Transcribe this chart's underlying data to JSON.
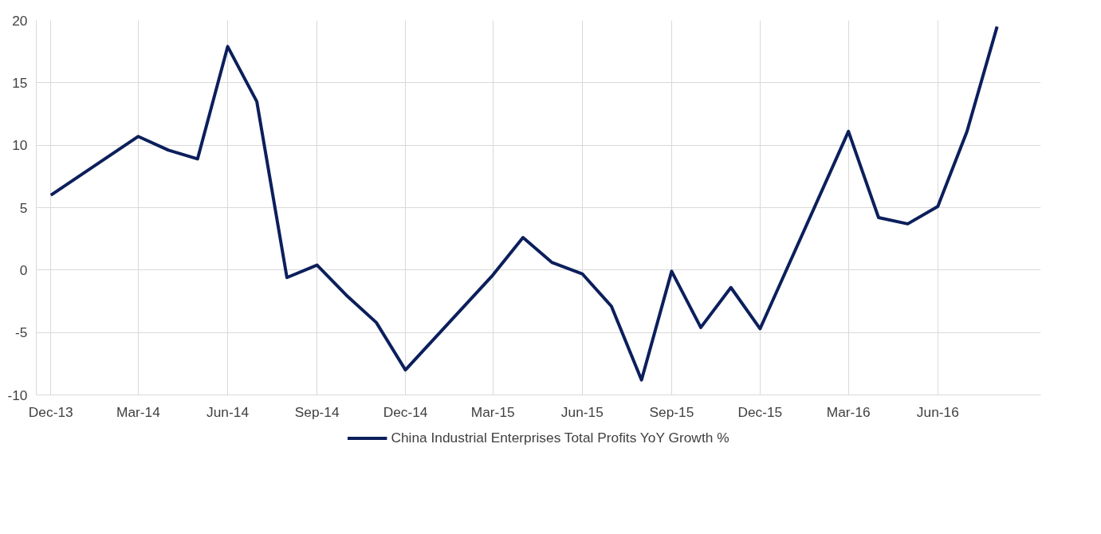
{
  "chart_data": {
    "type": "line",
    "x": [
      "2013-12",
      "2014-03",
      "2014-04",
      "2014-05",
      "2014-06",
      "2014-07",
      "2014-08",
      "2014-09",
      "2014-10",
      "2014-11",
      "2014-12",
      "2015-03",
      "2015-04",
      "2015-05",
      "2015-06",
      "2015-07",
      "2015-08",
      "2015-09",
      "2015-10",
      "2015-11",
      "2015-12",
      "2016-03",
      "2016-04",
      "2016-05",
      "2016-06",
      "2016-07",
      "2016-08"
    ],
    "series": [
      {
        "name": "China Industrial Enterprises Total Profits YoY Growth %",
        "color": "#0c1f5c",
        "values": [
          6.0,
          10.7,
          9.6,
          8.9,
          17.9,
          13.5,
          -0.6,
          0.4,
          -2.0,
          -4.2,
          -8.0,
          -0.4,
          2.6,
          0.6,
          -0.3,
          -2.9,
          -8.8,
          -0.1,
          -4.6,
          -1.4,
          -4.7,
          11.1,
          4.2,
          3.7,
          5.1,
          11.1,
          19.5
        ]
      }
    ],
    "xlim": [
      "2013-11-16",
      "2016-09-15"
    ],
    "xticks": [
      {
        "value": "2013-12",
        "label": "Dec-13"
      },
      {
        "value": "2014-03",
        "label": "Mar-14"
      },
      {
        "value": "2014-06",
        "label": "Jun-14"
      },
      {
        "value": "2014-09",
        "label": "Sep-14"
      },
      {
        "value": "2014-12",
        "label": "Dec-14"
      },
      {
        "value": "2015-03",
        "label": "Mar-15"
      },
      {
        "value": "2015-06",
        "label": "Jun-15"
      },
      {
        "value": "2015-09",
        "label": "Sep-15"
      },
      {
        "value": "2015-12",
        "label": "Dec-15"
      },
      {
        "value": "2016-03",
        "label": "Mar-16"
      },
      {
        "value": "2016-06",
        "label": "Jun-16"
      }
    ],
    "ylim": [
      -10,
      20
    ],
    "yticks": [
      -10,
      -5,
      0,
      5,
      10,
      15,
      20
    ],
    "grid": true,
    "legend": "bottom",
    "marker": "none",
    "line_style": "solid"
  }
}
